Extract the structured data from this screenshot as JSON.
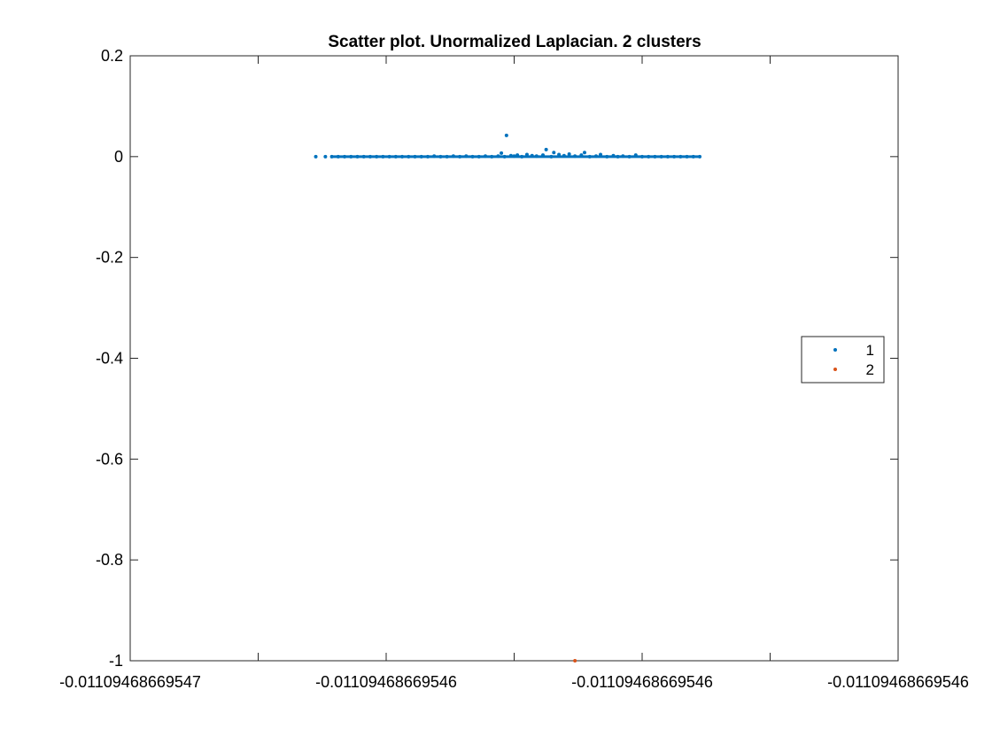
{
  "chart_data": {
    "type": "scatter",
    "title": "Scatter plot. Unormalized Laplacian. 2 clusters",
    "xlabel": "",
    "ylabel": "",
    "xlim": [
      -6,
      6
    ],
    "ylim": [
      -1,
      0.2
    ],
    "grid": false,
    "legend_position": "right",
    "x_ticks": [
      {
        "value": -6,
        "label": "-0.01109468669547"
      },
      {
        "value": -2,
        "label": "-0.01109468669546"
      },
      {
        "value": 2,
        "label": "-0.01109468669546"
      },
      {
        "value": 6,
        "label": "-0.01109468669546"
      }
    ],
    "y_ticks": [
      {
        "value": 0.2,
        "label": "0.2"
      },
      {
        "value": 0,
        "label": "0"
      },
      {
        "value": -0.2,
        "label": "-0.2"
      },
      {
        "value": -0.4,
        "label": "-0.4"
      },
      {
        "value": -0.6,
        "label": "-0.6"
      },
      {
        "value": -0.8,
        "label": "-0.8"
      },
      {
        "value": -1,
        "label": "-1"
      }
    ],
    "series": [
      {
        "name": "1",
        "color": "#0072BD",
        "points": [
          [
            -3.1,
            0.0
          ],
          [
            -2.95,
            0.0
          ],
          [
            -2.85,
            0.0
          ],
          [
            -2.75,
            0.0
          ],
          [
            -2.65,
            0.0
          ],
          [
            -2.55,
            0.0
          ],
          [
            -2.45,
            0.0
          ],
          [
            -2.35,
            0.0
          ],
          [
            -2.25,
            0.0
          ],
          [
            -2.15,
            0.0
          ],
          [
            -2.05,
            0.0
          ],
          [
            -1.95,
            0.0
          ],
          [
            -1.85,
            0.0
          ],
          [
            -1.75,
            0.0
          ],
          [
            -1.65,
            0.0
          ],
          [
            -1.55,
            0.0
          ],
          [
            -1.45,
            0.0
          ],
          [
            -1.35,
            0.0
          ],
          [
            -1.25,
            0.001
          ],
          [
            -1.15,
            0.0
          ],
          [
            -1.05,
            0.0
          ],
          [
            -0.95,
            0.001
          ],
          [
            -0.85,
            0.0
          ],
          [
            -0.75,
            0.001
          ],
          [
            -0.65,
            0.0
          ],
          [
            -0.55,
            0.0
          ],
          [
            -0.45,
            0.001
          ],
          [
            -0.35,
            0.0
          ],
          [
            -0.25,
            0.001
          ],
          [
            -0.2,
            0.007
          ],
          [
            -0.15,
            0.0
          ],
          [
            -0.12,
            0.042
          ],
          [
            -0.05,
            0.002
          ],
          [
            0.0,
            0.001
          ],
          [
            0.05,
            0.003
          ],
          [
            0.12,
            0.0
          ],
          [
            0.2,
            0.004
          ],
          [
            0.28,
            0.002
          ],
          [
            0.35,
            0.001
          ],
          [
            0.45,
            0.003
          ],
          [
            0.5,
            0.014
          ],
          [
            0.58,
            0.0
          ],
          [
            0.62,
            0.008
          ],
          [
            0.7,
            0.004
          ],
          [
            0.78,
            0.002
          ],
          [
            0.86,
            0.005
          ],
          [
            0.95,
            0.001
          ],
          [
            1.05,
            0.003
          ],
          [
            1.1,
            0.008
          ],
          [
            1.18,
            0.0
          ],
          [
            1.28,
            0.001
          ],
          [
            1.35,
            0.004
          ],
          [
            1.45,
            0.0
          ],
          [
            1.55,
            0.002
          ],
          [
            1.62,
            0.0
          ],
          [
            1.7,
            0.001
          ],
          [
            1.8,
            0.0
          ],
          [
            1.9,
            0.003
          ],
          [
            2.0,
            0.0
          ],
          [
            2.1,
            0.0
          ],
          [
            2.2,
            0.0
          ],
          [
            2.3,
            0.0
          ],
          [
            2.4,
            0.0
          ],
          [
            2.5,
            0.0
          ],
          [
            2.6,
            0.0
          ],
          [
            2.7,
            0.0
          ],
          [
            2.8,
            0.0
          ],
          [
            2.9,
            0.0
          ]
        ]
      },
      {
        "name": "2",
        "color": "#D95319",
        "points": [
          [
            0.95,
            -1.0
          ]
        ]
      }
    ]
  }
}
